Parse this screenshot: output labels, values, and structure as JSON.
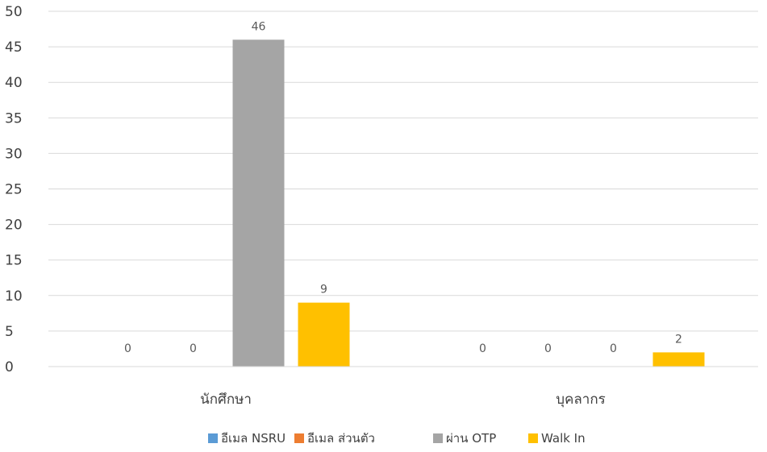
{
  "chart_data": {
    "type": "bar",
    "title": "",
    "xlabel": "",
    "ylabel": "",
    "categories": [
      "นักศึกษา",
      "บุคลากร"
    ],
    "series": [
      {
        "name": "อีเมล NSRU",
        "values": [
          0,
          0
        ],
        "color": "#5B9BD5"
      },
      {
        "name": "อีเมล ส่วนตัว",
        "values": [
          0,
          0
        ],
        "color": "#ED7D31"
      },
      {
        "name": "ผ่าน OTP",
        "values": [
          46,
          0
        ],
        "color": "#A5A5A5"
      },
      {
        "name": "Walk In",
        "values": [
          9,
          2
        ],
        "color": "#FFC000"
      }
    ],
    "ylim": [
      0,
      50
    ],
    "yticks": [
      0,
      5,
      10,
      15,
      20,
      25,
      30,
      35,
      40,
      45,
      50
    ],
    "grid": true,
    "legend_position": "bottom",
    "data_labels": true
  }
}
